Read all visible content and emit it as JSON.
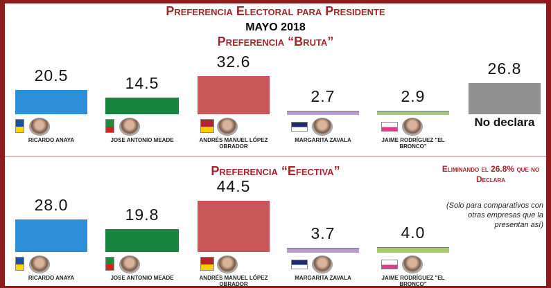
{
  "header": {
    "title": "Preferencia Electoral para Presidente",
    "date": "MAYO 2018"
  },
  "colors": {
    "frame": "#8e1b1b",
    "title": "#a3262a",
    "anaya": "#2d8fd8",
    "meade": "#17853f",
    "amlo": "#c9575a",
    "zavala": "#b89bd0",
    "bronco": "#a9c77b",
    "no_declara": "#8f8f8f"
  },
  "candidates": [
    {
      "name": "RICARDO ANAYA",
      "icon": "pan-logo"
    },
    {
      "name": "JOSE ANTONIO MEADE",
      "icon": "pri-logo"
    },
    {
      "name": "ANDRÉS MANUEL LÓPEZ OBRADOR",
      "icon": "morena-pt-logo"
    },
    {
      "name": "MARGARITA ZAVALA",
      "icon": "independiente-logo"
    },
    {
      "name": "JAIME RODRÍGUEZ \"EL BRONCO\"",
      "icon": "independiente-logo"
    }
  ],
  "no_declara_label": "No declara",
  "notes": {
    "eliminando": "Eliminando el 26.8% que no Declara",
    "solo": "(Solo para comparativos con otras empresas que la presentan así)"
  },
  "chart_data": [
    {
      "type": "bar",
      "title": "Preferencia “Bruta”",
      "categories": [
        "RICARDO ANAYA",
        "JOSE ANTONIO MEADE",
        "ANDRÉS MANUEL LÓPEZ OBRADOR",
        "MARGARITA ZAVALA",
        "JAIME RODRÍGUEZ \"EL BRONCO\"",
        "No declara"
      ],
      "values": [
        20.5,
        14.5,
        32.6,
        2.7,
        2.9,
        26.8
      ],
      "labels": [
        "20.5",
        "14.5",
        "32.6",
        "2.7",
        "2.9",
        "26.8"
      ],
      "ylim": [
        0,
        32.6
      ],
      "grid": false,
      "legend": "none"
    },
    {
      "type": "bar",
      "title": "Preferencia “Efectiva”",
      "categories": [
        "RICARDO ANAYA",
        "JOSE ANTONIO MEADE",
        "ANDRÉS MANUEL LÓPEZ OBRADOR",
        "MARGARITA ZAVALA",
        "JAIME RODRÍGUEZ \"EL BRONCO\""
      ],
      "values": [
        28.0,
        19.8,
        44.5,
        3.7,
        4.0
      ],
      "labels": [
        "28.0",
        "19.8",
        "44.5",
        "3.7",
        "4.0"
      ],
      "ylim": [
        0,
        44.5
      ],
      "grid": false,
      "legend": "none"
    }
  ]
}
